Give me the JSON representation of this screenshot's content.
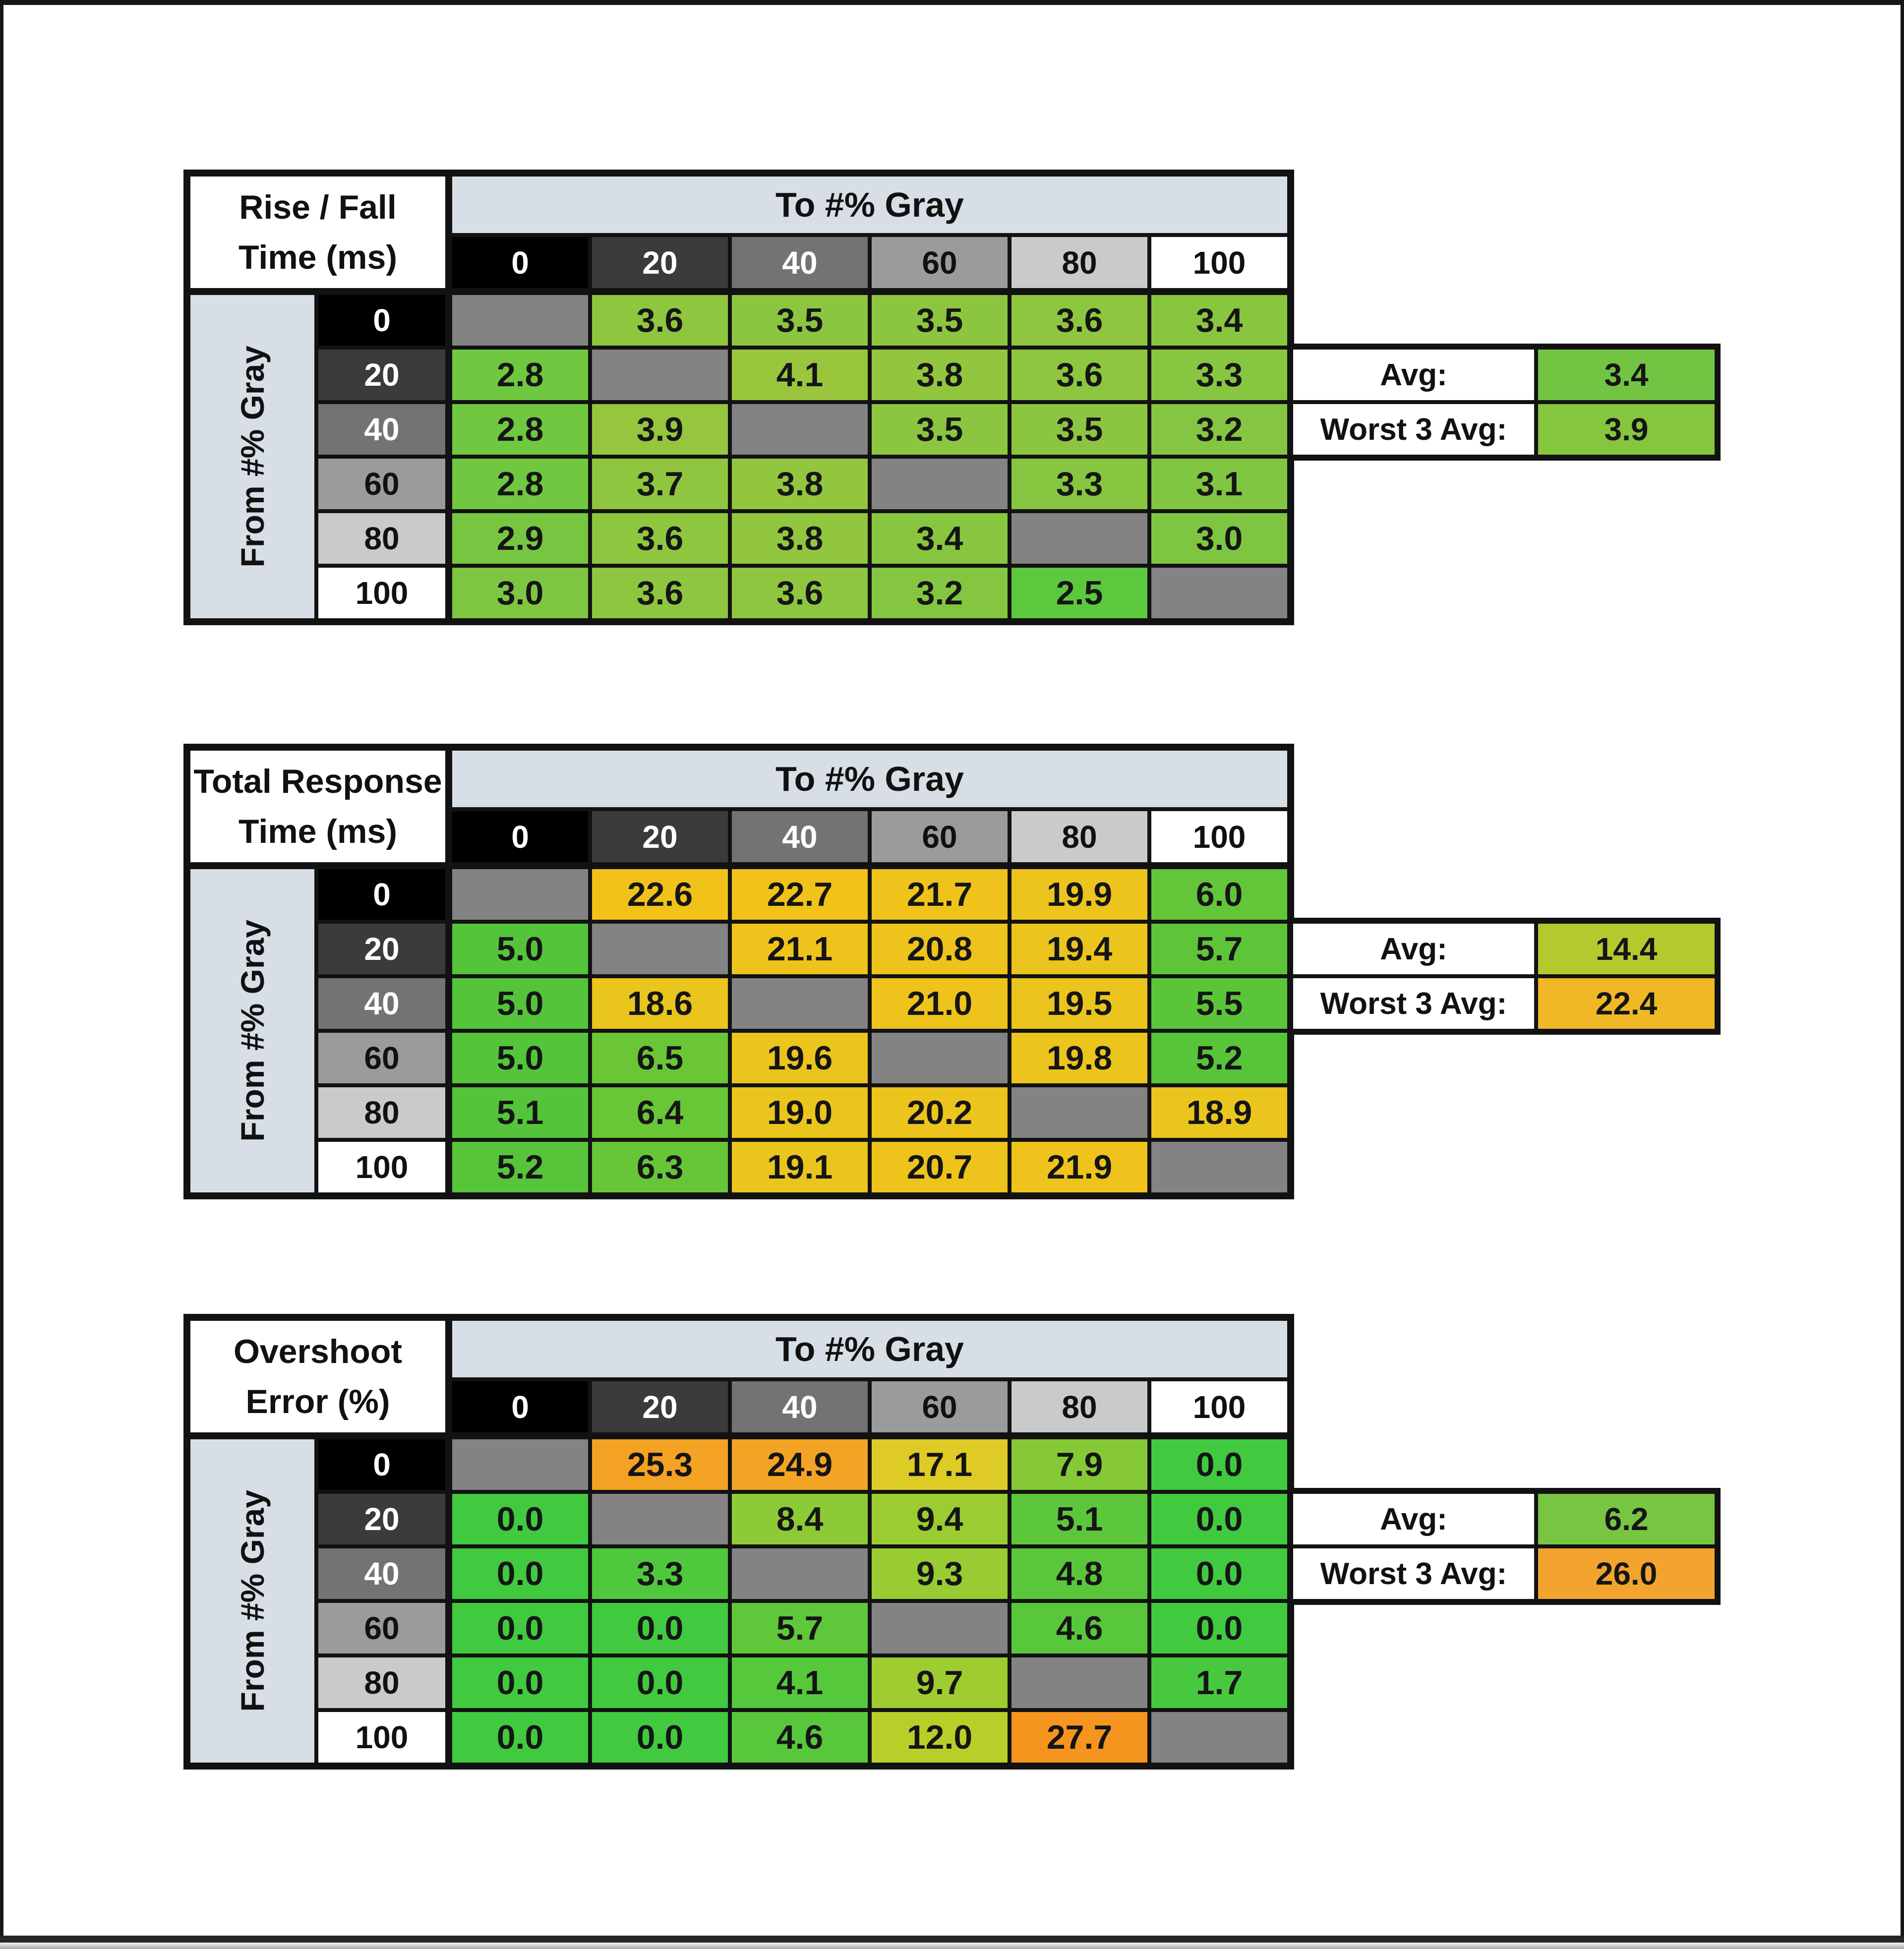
{
  "ui": {
    "band_color": "#D7DEE6",
    "diagonal_color": "#838383",
    "grid_line_color": "#121212",
    "frame_color": "#161616",
    "bottom_strip_colors": [
      "#F2F2F2",
      "#A4A8A9"
    ],
    "level_colors": [
      "#000000",
      "#3B3B3B",
      "#737373",
      "#999B9C",
      "#C8CACB",
      "#FFFFFF"
    ],
    "level_text_colors": [
      "#FFFFFF",
      "#FFFFFF",
      "#FFFFFF",
      "#111111",
      "#111111",
      "#111111"
    ]
  },
  "chart_data": [
    {
      "type": "heatmap",
      "title": "Rise / Fall Time (ms)",
      "title_lines": [
        "Rise / Fall",
        "Time (ms)"
      ],
      "col_axis_label": "To #% Gray",
      "row_axis_label": "From #% Gray",
      "columns": [
        "0",
        "20",
        "40",
        "60",
        "80",
        "100"
      ],
      "rows": [
        "0",
        "20",
        "40",
        "60",
        "80",
        "100"
      ],
      "values": [
        [
          null,
          3.6,
          3.5,
          3.5,
          3.6,
          3.4
        ],
        [
          2.8,
          null,
          4.1,
          3.8,
          3.6,
          3.3
        ],
        [
          2.8,
          3.9,
          null,
          3.5,
          3.5,
          3.2
        ],
        [
          2.8,
          3.7,
          3.8,
          null,
          3.3,
          3.1
        ],
        [
          2.9,
          3.6,
          3.8,
          3.4,
          null,
          3.0
        ],
        [
          3.0,
          3.6,
          3.6,
          3.2,
          2.5,
          null
        ]
      ],
      "color_stops": [
        [
          2.5,
          "#5CC83D"
        ],
        [
          3.0,
          "#7EC642"
        ],
        [
          3.5,
          "#8CC640"
        ],
        [
          4.1,
          "#99C63D"
        ]
      ],
      "summary": {
        "avg_label": "Avg:",
        "avg_value": 3.4,
        "avg_color": "#74C444",
        "worst_label": "Worst 3 Avg:",
        "worst_value": 3.9,
        "worst_color": "#86C53E"
      }
    },
    {
      "type": "heatmap",
      "title": "Total Response Time (ms)",
      "title_lines": [
        "Total Response",
        "Time (ms)"
      ],
      "col_axis_label": "To #% Gray",
      "row_axis_label": "From #% Gray",
      "columns": [
        "0",
        "20",
        "40",
        "60",
        "80",
        "100"
      ],
      "rows": [
        "0",
        "20",
        "40",
        "60",
        "80",
        "100"
      ],
      "values": [
        [
          null,
          22.6,
          22.7,
          21.7,
          19.9,
          6.0
        ],
        [
          5.0,
          null,
          21.1,
          20.8,
          19.4,
          5.7
        ],
        [
          5.0,
          18.6,
          null,
          21.0,
          19.5,
          5.5
        ],
        [
          5.0,
          6.5,
          19.6,
          null,
          19.8,
          5.2
        ],
        [
          5.1,
          6.4,
          19.0,
          20.2,
          null,
          18.9
        ],
        [
          5.2,
          6.3,
          19.1,
          20.7,
          21.9,
          null
        ]
      ],
      "color_stops": [
        [
          5.0,
          "#54C43B"
        ],
        [
          6.5,
          "#6AC637"
        ],
        [
          14.4,
          "#B5C92F"
        ],
        [
          18.6,
          "#E9C51E"
        ],
        [
          22.7,
          "#F1C21A"
        ]
      ],
      "summary": {
        "avg_label": "Avg:",
        "avg_value": 14.4,
        "avg_color": "#B5C92F",
        "worst_label": "Worst 3 Avg:",
        "worst_value": 22.4,
        "worst_color": "#F0B827"
      }
    },
    {
      "type": "heatmap",
      "title": "Overshoot Error (%)",
      "title_lines": [
        "Overshoot",
        "Error (%)"
      ],
      "col_axis_label": "To #% Gray",
      "row_axis_label": "From #% Gray",
      "columns": [
        "0",
        "20",
        "40",
        "60",
        "80",
        "100"
      ],
      "rows": [
        "0",
        "20",
        "40",
        "60",
        "80",
        "100"
      ],
      "values": [
        [
          null,
          25.3,
          24.9,
          17.1,
          7.9,
          0.0
        ],
        [
          0.0,
          null,
          8.4,
          9.4,
          5.1,
          0.0
        ],
        [
          0.0,
          3.3,
          null,
          9.3,
          4.8,
          0.0
        ],
        [
          0.0,
          0.0,
          5.7,
          null,
          4.6,
          0.0
        ],
        [
          0.0,
          0.0,
          4.1,
          9.7,
          null,
          1.7
        ],
        [
          0.0,
          0.0,
          4.6,
          12.0,
          27.7,
          null
        ]
      ],
      "color_stops": [
        [
          0,
          "#41C940"
        ],
        [
          1.7,
          "#48C83E"
        ],
        [
          3.3,
          "#4FC83D"
        ],
        [
          5.7,
          "#61C73A"
        ],
        [
          7.9,
          "#85CA36"
        ],
        [
          9.7,
          "#9FCC31"
        ],
        [
          12.0,
          "#BACE2A"
        ],
        [
          17.1,
          "#DFCB26"
        ],
        [
          24.9,
          "#F4A425"
        ],
        [
          27.7,
          "#F69420"
        ]
      ],
      "summary": {
        "avg_label": "Avg:",
        "avg_value": 6.2,
        "avg_color": "#77C541",
        "worst_label": "Worst 3 Avg:",
        "worst_value": 26.0,
        "worst_color": "#F2A42E"
      }
    }
  ]
}
